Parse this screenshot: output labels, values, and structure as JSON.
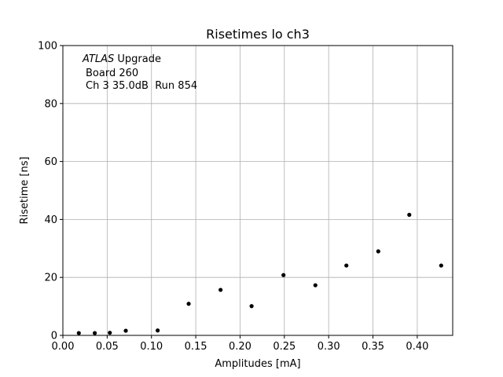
{
  "chart_data": {
    "type": "scatter",
    "title": "Risetimes lo ch3",
    "xlabel": "Amplitudes [mA]",
    "ylabel": "Risetime [ns]",
    "xlim": [
      0.0,
      0.44
    ],
    "ylim": [
      0,
      100
    ],
    "xticks": [
      0.0,
      0.05,
      0.1,
      0.15,
      0.2,
      0.25,
      0.3,
      0.35,
      0.4
    ],
    "xtick_labels": [
      "0.00",
      "0.05",
      "0.10",
      "0.15",
      "0.20",
      "0.25",
      "0.30",
      "0.35",
      "0.40"
    ],
    "yticks": [
      0,
      20,
      40,
      60,
      80,
      100
    ],
    "ytick_labels": [
      "0",
      "20",
      "40",
      "60",
      "80",
      "100"
    ],
    "grid": true,
    "marker_color": "#000000",
    "grid_color": "#b0b0b0",
    "annotation": {
      "italic_part": "ATLAS",
      "line1_rest": " Upgrade",
      "line2": "Board 260",
      "line3": "Ch 3 35.0dB  Run 854"
    },
    "points": [
      {
        "x": 0.018,
        "y": 0.8
      },
      {
        "x": 0.036,
        "y": 0.8
      },
      {
        "x": 0.053,
        "y": 0.9
      },
      {
        "x": 0.071,
        "y": 1.6
      },
      {
        "x": 0.107,
        "y": 1.7
      },
      {
        "x": 0.142,
        "y": 10.9
      },
      {
        "x": 0.178,
        "y": 15.7
      },
      {
        "x": 0.213,
        "y": 10.1
      },
      {
        "x": 0.249,
        "y": 20.8
      },
      {
        "x": 0.285,
        "y": 17.3
      },
      {
        "x": 0.32,
        "y": 24.1
      },
      {
        "x": 0.356,
        "y": 29.0
      },
      {
        "x": 0.391,
        "y": 41.6
      },
      {
        "x": 0.427,
        "y": 24.1
      }
    ]
  }
}
